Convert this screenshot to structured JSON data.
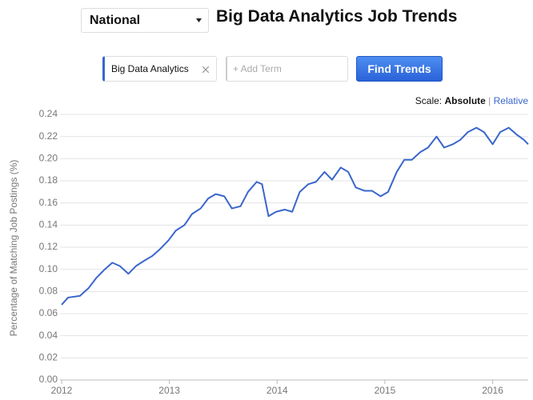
{
  "header": {
    "location": "National",
    "title": "Big Data Analytics Job Trends"
  },
  "search": {
    "terms": [
      "Big Data Analytics"
    ],
    "add_placeholder": "+ Add Term",
    "button": "Find Trends"
  },
  "scale": {
    "label": "Scale:",
    "options": [
      "Absolute",
      "Relative"
    ],
    "separator": "|"
  },
  "chart_data": {
    "type": "line",
    "y_label": "Percentage of Matching Job Postings (%)",
    "x": [
      2012.0,
      2012.06,
      2012.17,
      2012.25,
      2012.32,
      2012.39,
      2012.47,
      2012.54,
      2012.62,
      2012.69,
      2012.77,
      2012.84,
      2012.91,
      2012.99,
      2013.06,
      2013.14,
      2013.21,
      2013.29,
      2013.36,
      2013.43,
      2013.51,
      2013.58,
      2013.66,
      2013.73,
      2013.81,
      2013.86,
      2013.92,
      2013.99,
      2014.07,
      2014.14,
      2014.21,
      2014.29,
      2014.36,
      2014.44,
      2014.51,
      2014.59,
      2014.66,
      2014.73,
      2014.81,
      2014.88,
      2014.96,
      2015.03,
      2015.11,
      2015.18,
      2015.25,
      2015.33,
      2015.4,
      2015.48,
      2015.55,
      2015.63,
      2015.7,
      2015.77,
      2015.85,
      2015.92,
      2016.0,
      2016.07,
      2016.15,
      2016.22,
      2016.29,
      2016.33
    ],
    "values": [
      0.068,
      0.0745,
      0.076,
      0.083,
      0.092,
      0.099,
      0.106,
      0.103,
      0.096,
      0.103,
      0.108,
      0.112,
      0.118,
      0.126,
      0.135,
      0.14,
      0.15,
      0.155,
      0.164,
      0.168,
      0.166,
      0.155,
      0.157,
      0.17,
      0.179,
      0.177,
      0.148,
      0.152,
      0.154,
      0.152,
      0.17,
      0.177,
      0.179,
      0.188,
      0.181,
      0.192,
      0.188,
      0.174,
      0.171,
      0.171,
      0.166,
      0.17,
      0.188,
      0.199,
      0.199,
      0.206,
      0.21,
      0.22,
      0.21,
      0.213,
      0.217,
      0.224,
      0.228,
      0.224,
      0.213,
      0.224,
      0.228,
      0.222,
      0.217,
      0.213
    ],
    "color": "#3a66cc",
    "xlim": [
      2012,
      2016.33
    ],
    "xticks": [
      2012,
      2013,
      2014,
      2015,
      2016
    ],
    "ylim": [
      0,
      0.24
    ],
    "yticks": [
      {
        "value": 0,
        "label": "0.00"
      },
      0.02,
      0.04,
      0.06,
      0.08,
      {
        "value": 0.1,
        "label": "0.10"
      },
      0.12,
      0.14,
      0.16,
      0.18,
      {
        "value": 0.2,
        "label": "0.20"
      },
      0.22,
      0.24
    ],
    "grid": true
  }
}
